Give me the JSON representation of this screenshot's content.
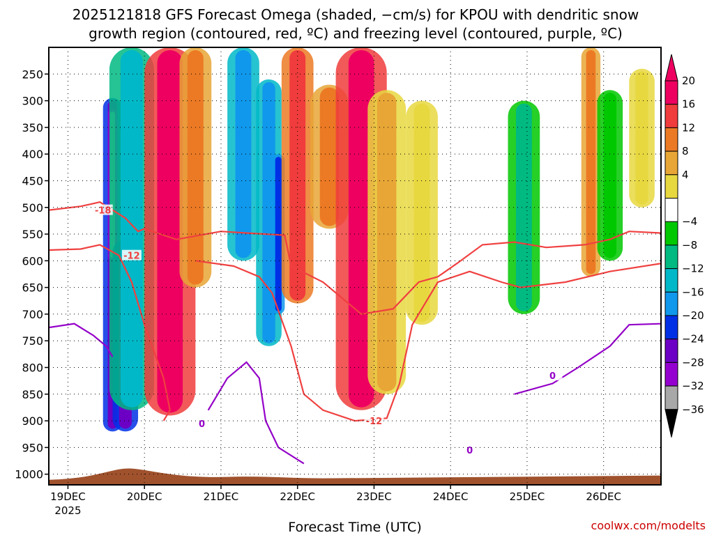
{
  "chart_data": {
    "type": "heatmap",
    "title_line1": "2025121818 GFS Forecast Omega (shaded, −cm/s) for KPOU with dendritic snow",
    "title_line2": "growth region (contoured, red, ºC) and freezing level (contoured, purple, ºC)",
    "xlabel": "Forecast Time (UTC)",
    "credit": "coolwx.com/modelts",
    "x_ticks": [
      "19DEC",
      "20DEC",
      "21DEC",
      "22DEC",
      "23DEC",
      "24DEC",
      "25DEC",
      "26DEC"
    ],
    "x_tick_sublabel": "2025",
    "x_range_hours": [
      -6,
      186
    ],
    "y_ticks": [
      250,
      300,
      350,
      400,
      450,
      500,
      550,
      600,
      650,
      700,
      750,
      800,
      850,
      900,
      950,
      1000
    ],
    "y_range_hpa": [
      200,
      1020
    ],
    "colorbar_ticks": [
      "20",
      "16",
      "12",
      "8",
      "4",
      "−4",
      "−8",
      "−12",
      "−16",
      "−20",
      "−24",
      "−28",
      "−32",
      "−36"
    ],
    "colorbar_colors": [
      "#ee0060",
      "#f03c3c",
      "#ec7a24",
      "#e8a636",
      "#e8d840",
      "#ffffff",
      "#00c800",
      "#00ba82",
      "#00b8c8",
      "#1098ec",
      "#0030e6",
      "#6c00c4",
      "#9400d0",
      "#a8a8a8"
    ],
    "omega_bands": [
      {
        "t": 14,
        "p_top": 295,
        "p_bot": 920,
        "level": 11,
        "w": 3
      },
      {
        "t": 14,
        "p_top": 315,
        "p_bot": 600,
        "level": 13,
        "w": 1.5
      },
      {
        "t": 18,
        "p_top": 560,
        "p_bot": 920,
        "level": 11,
        "w": 4
      },
      {
        "t": 18,
        "p_top": 590,
        "p_bot": 860,
        "level": 13,
        "w": 2
      },
      {
        "t": 20,
        "p_top": 200,
        "p_bot": 880,
        "level": 8,
        "w": 7
      },
      {
        "t": 32,
        "p_top": 200,
        "p_bot": 890,
        "level": 0,
        "w": 8
      },
      {
        "t": 40,
        "p_top": 200,
        "p_bot": 650,
        "level": 2,
        "w": 5
      },
      {
        "t": 55,
        "p_top": 200,
        "p_bot": 600,
        "level": 9,
        "w": 5
      },
      {
        "t": 63,
        "p_top": 260,
        "p_bot": 760,
        "level": 9,
        "w": 4
      },
      {
        "t": 66,
        "p_top": 400,
        "p_bot": 700,
        "level": 10,
        "w": 2
      },
      {
        "t": 72,
        "p_top": 200,
        "p_bot": 680,
        "level": 1,
        "w": 5
      },
      {
        "t": 82,
        "p_top": 270,
        "p_bot": 540,
        "level": 2,
        "w": 6
      },
      {
        "t": 92,
        "p_top": 200,
        "p_bot": 880,
        "level": 0,
        "w": 8
      },
      {
        "t": 100,
        "p_top": 280,
        "p_bot": 850,
        "level": 3,
        "w": 6
      },
      {
        "t": 111,
        "p_top": 300,
        "p_bot": 720,
        "level": 4,
        "w": 5
      },
      {
        "t": 143,
        "p_top": 300,
        "p_bot": 700,
        "level": 7,
        "w": 5
      },
      {
        "t": 164,
        "p_top": 200,
        "p_bot": 630,
        "level": 2,
        "w": 3
      },
      {
        "t": 170,
        "p_top": 280,
        "p_bot": 600,
        "level": 6,
        "w": 4
      },
      {
        "t": 180,
        "p_top": 240,
        "p_bot": 500,
        "level": 4,
        "w": 4
      }
    ],
    "contours": [
      {
        "label": "-18",
        "color": "#f04040",
        "label_at": [
          11,
          505
        ],
        "points": [
          [
            -6,
            505
          ],
          [
            4,
            498
          ],
          [
            10,
            490
          ],
          [
            14,
            505
          ],
          [
            18,
            520
          ],
          [
            22,
            545
          ],
          [
            24,
            540
          ],
          [
            34,
            560
          ],
          [
            48,
            545
          ],
          [
            56,
            548
          ],
          [
            68,
            552
          ],
          [
            70,
            610
          ],
          [
            80,
            640
          ],
          [
            92,
            700
          ],
          [
            102,
            690
          ],
          [
            110,
            640
          ],
          [
            116,
            630
          ],
          [
            122,
            605
          ],
          [
            130,
            570
          ],
          [
            140,
            565
          ],
          [
            150,
            575
          ],
          [
            162,
            570
          ],
          [
            170,
            560
          ],
          [
            176,
            545
          ],
          [
            186,
            548
          ]
        ]
      },
      {
        "label": "-12",
        "color": "#f04040",
        "label_at": [
          20,
          590
        ],
        "points": [
          [
            -6,
            580
          ],
          [
            4,
            578
          ],
          [
            10,
            570
          ],
          [
            16,
            590
          ],
          [
            20,
            640
          ],
          [
            24,
            720
          ],
          [
            30,
            820
          ],
          [
            32,
            880
          ],
          [
            30,
            900
          ]
        ]
      },
      {
        "label": "-12",
        "color": "#f04040",
        "label_at": [
          96,
          900
        ],
        "points": [
          [
            40,
            600
          ],
          [
            52,
            610
          ],
          [
            60,
            630
          ],
          [
            64,
            660
          ],
          [
            70,
            760
          ],
          [
            74,
            850
          ],
          [
            80,
            880
          ],
          [
            90,
            900
          ],
          [
            100,
            895
          ],
          [
            104,
            830
          ],
          [
            108,
            720
          ],
          [
            116,
            640
          ],
          [
            126,
            620
          ],
          [
            136,
            640
          ],
          [
            142,
            650
          ],
          [
            156,
            640
          ],
          [
            170,
            620
          ],
          [
            186,
            605
          ]
        ]
      },
      {
        "label": "0",
        "color": "#9400c8",
        "label_at": [
          42,
          905
        ],
        "points": [
          [
            -6,
            725
          ],
          [
            2,
            718
          ],
          [
            8,
            740
          ],
          [
            12,
            760
          ],
          [
            14,
            780
          ]
        ]
      },
      {
        "label": "0",
        "color": "#9400c8",
        "label_at": [
          126,
          955
        ],
        "points": [
          [
            44,
            880
          ],
          [
            50,
            820
          ],
          [
            56,
            790
          ],
          [
            60,
            820
          ],
          [
            62,
            900
          ],
          [
            66,
            950
          ],
          [
            74,
            980
          ]
        ]
      },
      {
        "label": "0",
        "color": "#9400c8",
        "label_at": [
          152,
          815
        ],
        "points": [
          [
            140,
            850
          ],
          [
            152,
            830
          ],
          [
            160,
            800
          ],
          [
            170,
            760
          ],
          [
            176,
            720
          ],
          [
            186,
            718
          ]
        ]
      }
    ],
    "terrain_color": "#a0522d",
    "terrain_top_hpa": 1000
  }
}
